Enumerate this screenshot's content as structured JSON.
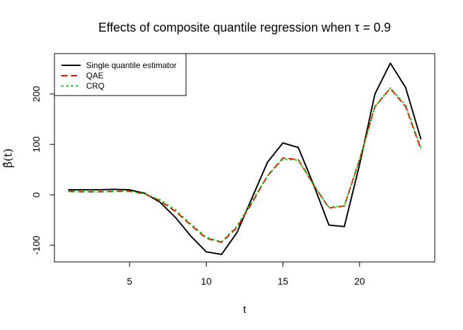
{
  "chart_data": {
    "type": "line",
    "title": "Effects of composite quantile regression when τ = 0.9",
    "xlabel": "t",
    "ylabel": "β̂(t)",
    "xlim": [
      0.1,
      24.9
    ],
    "ylim": [
      -133,
      280
    ],
    "xticks": [
      5,
      10,
      15,
      20
    ],
    "yticks": [
      -100,
      0,
      100,
      200
    ],
    "ytick_labels": [
      "-100",
      "0",
      "100",
      "200"
    ],
    "legend": {
      "placement": "top-left"
    },
    "grid": false,
    "x": [
      1,
      2,
      3,
      4,
      5,
      6,
      7,
      8,
      9,
      10,
      11,
      12,
      13,
      14,
      15,
      16,
      17,
      18,
      19,
      20,
      21,
      22,
      23,
      24
    ],
    "series": [
      {
        "name": "Single quantile estimator",
        "color": "#000000",
        "dash": "solid",
        "values": [
          10,
          10,
          10,
          11,
          10,
          3,
          -15,
          -45,
          -82,
          -113,
          -118,
          -75,
          -5,
          65,
          103,
          94,
          20,
          -60,
          -63,
          60,
          200,
          261,
          213,
          110
        ]
      },
      {
        "name": "QAE",
        "color": "#ff0000",
        "dash": "dashed",
        "values": [
          7,
          6,
          6,
          7,
          7,
          2,
          -12,
          -33,
          -60,
          -86,
          -94,
          -65,
          -15,
          38,
          73,
          70,
          20,
          -26,
          -22,
          70,
          175,
          211,
          175,
          90
        ]
      },
      {
        "name": "CRQ",
        "color": "#00cd00",
        "dash": "dotted",
        "values": [
          7,
          6,
          6,
          7,
          7,
          2,
          -10,
          -30,
          -58,
          -84,
          -93,
          -62,
          -12,
          38,
          71,
          69,
          20,
          -25,
          -22,
          70,
          175,
          212,
          178,
          93
        ]
      }
    ]
  }
}
